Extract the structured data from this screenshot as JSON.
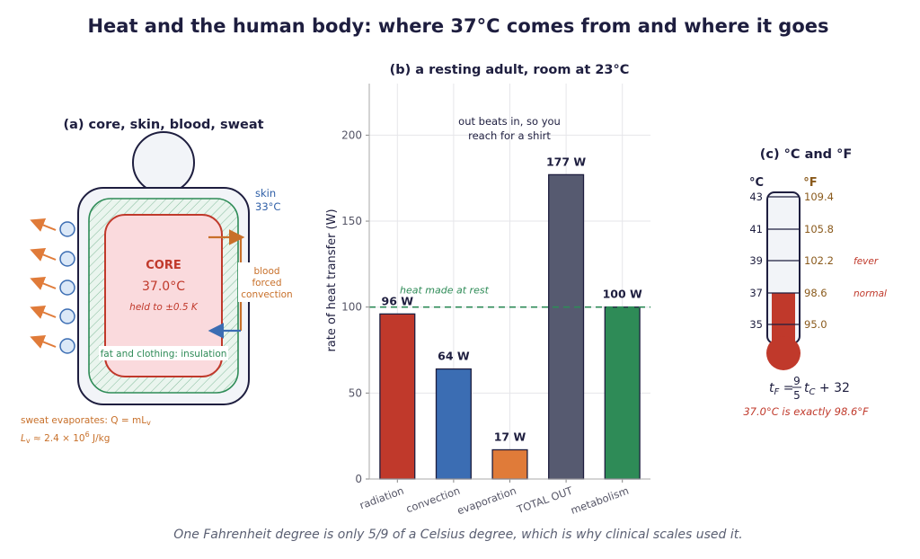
{
  "title": "Heat and the human body: where 37°C comes from and where it goes",
  "caption": "One Fahrenheit degree is only 5/9 of a Celsius degree, which is why clinical scales used it.",
  "panel_a": {
    "title": "(a)  core, skin, blood, sweat",
    "skin_label_1": "skin",
    "skin_label_2": "33°C",
    "core_label": "CORE",
    "core_temp": "37.0°C",
    "core_hold": "held to ±0.5 K",
    "blood_1": "blood",
    "blood_2": "forced",
    "blood_3": "convection",
    "insulation": "fat and clothing: insulation",
    "sweat_1": "sweat evaporates:  Q = mL",
    "sweat_1_sub": "v",
    "sweat_2": "L",
    "sweat_2_sub": "v",
    "sweat_2_rest": " ≈ 2.4 × 10",
    "sweat_2_exp": "6",
    "sweat_2_unit": " J/kg",
    "colors": {
      "skin": "#2f5fa7",
      "core": "#c0392b",
      "fat": "#2e8b57",
      "blood": "#c8702a",
      "sweat": "#e07b39"
    }
  },
  "panel_c": {
    "title": "(c)  °C and °F",
    "c_header": "°C",
    "f_header": "°F",
    "rows": [
      {
        "c": "43",
        "f": "109.4",
        "note": ""
      },
      {
        "c": "41",
        "f": "105.8",
        "note": ""
      },
      {
        "c": "39",
        "f": "102.2",
        "note": "fever"
      },
      {
        "c": "37",
        "f": "98.6",
        "note": "normal"
      },
      {
        "c": "35",
        "f": "95.0",
        "note": ""
      }
    ],
    "mercury_level_c": 37,
    "formula_lhs": "t",
    "formula_lhs_sub": "F",
    "formula_eq": " = ",
    "formula_num": "9",
    "formula_den": "5",
    "formula_rhs": "t",
    "formula_rhs_sub": "C",
    "formula_tail": " + 32",
    "exact_note": "37.0°C is exactly 98.6°F",
    "colors": {
      "mercury": "#c0392b",
      "fahrenheit": "#8a5a1c"
    }
  },
  "chart_data": {
    "type": "bar",
    "title": "(b)  a resting adult, room at 23°C",
    "categories": [
      "radiation",
      "convection",
      "evaporation",
      "TOTAL OUT",
      "metabolism"
    ],
    "values": [
      96,
      64,
      17,
      177,
      100
    ],
    "value_labels": [
      "96 W",
      "64 W",
      "17 W",
      "177 W",
      "100 W"
    ],
    "colors": [
      "#c0392b",
      "#3b6db3",
      "#e07b39",
      "#565a70",
      "#2e8b57"
    ],
    "ylabel": "rate of heat transfer  (W)",
    "xlabel": "",
    "ylim": [
      0,
      230
    ],
    "yticks": [
      0,
      50,
      100,
      150,
      200
    ],
    "grid": true,
    "reference_line": {
      "value": 100,
      "label": "heat made at rest",
      "color": "#2e8b57"
    },
    "annotation_1": "out beats in, so you",
    "annotation_2": "reach for a shirt"
  }
}
